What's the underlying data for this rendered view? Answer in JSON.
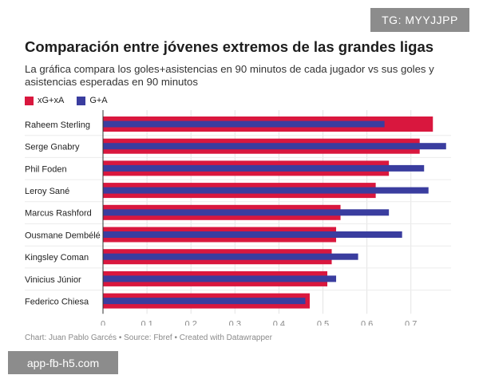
{
  "watermark_top": "TG: MYYJJPP",
  "watermark_bottom": "app-fb-h5.com",
  "footer": "Chart: Juan Pablo Garcés • Source: Fbref • Created with Datawrapper",
  "colors": {
    "xg": "#d9173e",
    "ga": "#3a3d9f"
  },
  "chart_data": {
    "type": "bar",
    "orientation": "horizontal",
    "title": "Comparación entre jóvenes extremos de las grandes ligas",
    "subtitle": "La gráfica compara los goles+asistencias en 90 minutos de cada jugador vs sus goles y asistencias esperadas en 90 minutos",
    "categories": [
      "Raheem Sterling",
      "Serge Gnabry",
      "Phil Foden",
      "Leroy Sané",
      "Marcus Rashford",
      "Ousmane Dembélé",
      "Kingsley Coman",
      "Vinicius Júnior",
      "Federico Chiesa"
    ],
    "series": [
      {
        "name": "xG+xA",
        "color": "#d9173e",
        "values": [
          0.75,
          0.72,
          0.65,
          0.62,
          0.54,
          0.53,
          0.52,
          0.51,
          0.47
        ]
      },
      {
        "name": "G+A",
        "color": "#3a3d9f",
        "values": [
          0.64,
          0.78,
          0.73,
          0.74,
          0.65,
          0.68,
          0.58,
          0.53,
          0.46
        ]
      }
    ],
    "xticks": [
      "0",
      "0.1",
      "0.2",
      "0.3",
      "0.4",
      "0.5",
      "0.6",
      "0.7"
    ],
    "xlim": [
      0,
      0.78
    ],
    "xlabel": "",
    "ylabel": "",
    "legend": "top-left",
    "grid": true
  }
}
